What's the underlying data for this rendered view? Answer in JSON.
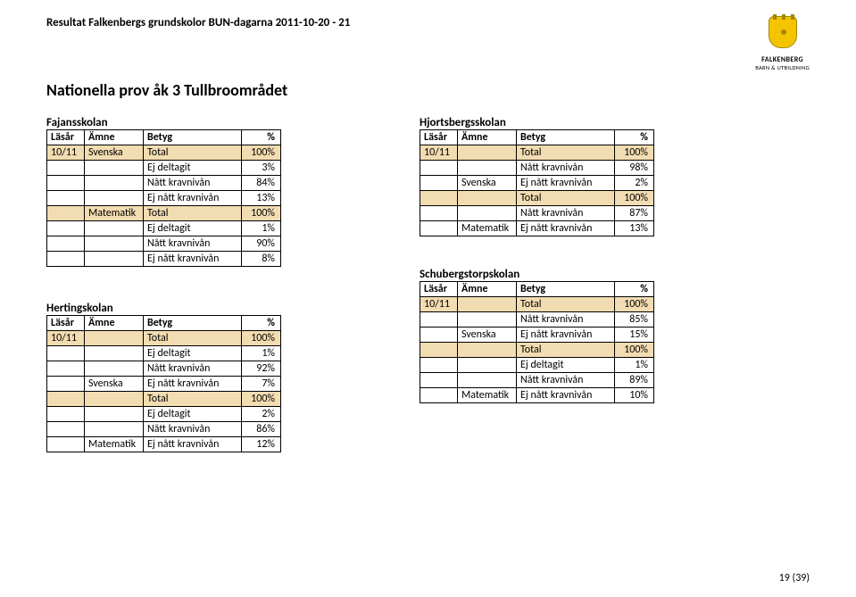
{
  "header_text": "Resultat Falkenbergs grundskolor BUN-dagarna 2011-10-20 - 21",
  "logo": {
    "line1": "FALKENBERG",
    "line2": "BARN & UTBILDNING"
  },
  "title": "Nationella prov åk 3 Tullbroområdet",
  "columns": {
    "year": "Läsår",
    "subject": "Ämne",
    "grade": "Betyg",
    "pct": "%"
  },
  "page_number": "19 (39)",
  "tables": {
    "fajans": {
      "name": "Fajansskolan",
      "rows": [
        {
          "year": "10/11",
          "subject": "Svenska",
          "grade": "Total",
          "pct": "100%",
          "hi": true
        },
        {
          "year": "",
          "subject": "",
          "grade": "Ej deltagit",
          "pct": "3%",
          "hi": false
        },
        {
          "year": "",
          "subject": "",
          "grade": "Nått kravnivån",
          "pct": "84%",
          "hi": false
        },
        {
          "year": "",
          "subject": "",
          "grade": "Ej nått kravnivån",
          "pct": "13%",
          "hi": false
        },
        {
          "year": "",
          "subject": "Matematik",
          "grade": "Total",
          "pct": "100%",
          "hi": true
        },
        {
          "year": "",
          "subject": "",
          "grade": "Ej deltagit",
          "pct": "1%",
          "hi": false
        },
        {
          "year": "",
          "subject": "",
          "grade": "Nått kravnivån",
          "pct": "90%",
          "hi": false
        },
        {
          "year": "",
          "subject": "",
          "grade": "Ej nått kravnivån",
          "pct": "8%",
          "hi": false
        }
      ]
    },
    "herting": {
      "name": "Hertingskolan",
      "rows": [
        {
          "year": "10/11",
          "subject": "",
          "grade": "Total",
          "pct": "100%",
          "hi": true
        },
        {
          "year": "",
          "subject": "",
          "grade": "Ej deltagit",
          "pct": "1%",
          "hi": false
        },
        {
          "year": "",
          "subject": "",
          "grade": "Nått kravnivån",
          "pct": "92%",
          "hi": false
        },
        {
          "year": "",
          "subject": "Svenska",
          "grade": "Ej nått kravnivån",
          "pct": "7%",
          "hi": false
        },
        {
          "year": "",
          "subject": "",
          "grade": "Total",
          "pct": "100%",
          "hi": true
        },
        {
          "year": "",
          "subject": "",
          "grade": "Ej deltagit",
          "pct": "2%",
          "hi": false
        },
        {
          "year": "",
          "subject": "",
          "grade": "Nått kravnivån",
          "pct": "86%",
          "hi": false
        },
        {
          "year": "",
          "subject": "Matematik",
          "grade": "Ej nått kravnivån",
          "pct": "12%",
          "hi": false
        }
      ]
    },
    "hjorts": {
      "name": "Hjortsbergsskolan",
      "rows": [
        {
          "year": "10/11",
          "subject": "",
          "grade": "Total",
          "pct": "100%",
          "hi": true
        },
        {
          "year": "",
          "subject": "",
          "grade": "Nått kravnivån",
          "pct": "98%",
          "hi": false
        },
        {
          "year": "",
          "subject": "Svenska",
          "grade": "Ej nått kravnivån",
          "pct": "2%",
          "hi": false
        },
        {
          "year": "",
          "subject": "",
          "grade": "Total",
          "pct": "100%",
          "hi": true
        },
        {
          "year": "",
          "subject": "",
          "grade": "Nått kravnivån",
          "pct": "87%",
          "hi": false
        },
        {
          "year": "",
          "subject": "Matematik",
          "grade": "Ej nått kravnivån",
          "pct": "13%",
          "hi": false
        }
      ]
    },
    "schuberg": {
      "name": "Schubergstorpskolan",
      "rows": [
        {
          "year": "10/11",
          "subject": "",
          "grade": "Total",
          "pct": "100%",
          "hi": true
        },
        {
          "year": "",
          "subject": "",
          "grade": "Nått kravnivån",
          "pct": "85%",
          "hi": false
        },
        {
          "year": "",
          "subject": "Svenska",
          "grade": "Ej nått kravnivån",
          "pct": "15%",
          "hi": false
        },
        {
          "year": "",
          "subject": "",
          "grade": "Total",
          "pct": "100%",
          "hi": true
        },
        {
          "year": "",
          "subject": "",
          "grade": "Ej deltagit",
          "pct": "1%",
          "hi": false
        },
        {
          "year": "",
          "subject": "",
          "grade": "Nått kravnivån",
          "pct": "89%",
          "hi": false
        },
        {
          "year": "",
          "subject": "Matematik",
          "grade": "Ej nått kravnivån",
          "pct": "10%",
          "hi": false
        }
      ]
    }
  }
}
